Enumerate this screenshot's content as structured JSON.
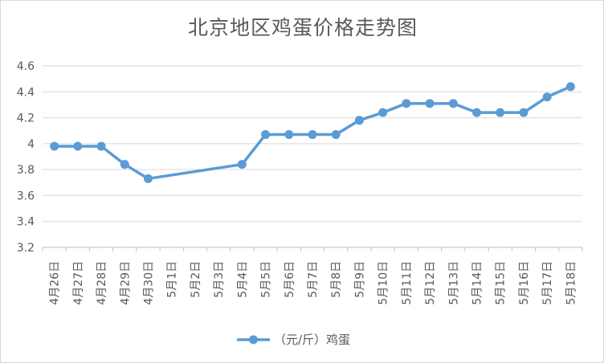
{
  "chart_data": {
    "type": "line",
    "title": "北京地区鸡蛋价格走势图",
    "categories": [
      "4月26日",
      "4月27日",
      "4月28日",
      "4月29日",
      "4月30日",
      "5月1日",
      "5月2日",
      "5月3日",
      "5月4日",
      "5月5日",
      "5月6日",
      "5月7日",
      "5月8日",
      "5月9日",
      "5月10日",
      "5月11日",
      "5月12日",
      "5月13日",
      "5月14日",
      "5月15日",
      "5月16日",
      "5月17日",
      "5月18日"
    ],
    "series": [
      {
        "name": "（元/斤）鸡蛋",
        "color": "#5b9bd5",
        "values": [
          3.98,
          3.98,
          3.98,
          3.84,
          3.73,
          null,
          null,
          null,
          3.84,
          4.07,
          4.07,
          4.07,
          4.07,
          4.18,
          4.24,
          4.31,
          4.31,
          4.31,
          4.24,
          4.24,
          4.24,
          4.36,
          4.44
        ]
      }
    ],
    "ylim": [
      3.2,
      4.6
    ],
    "yticks": [
      "3.2",
      "3.4",
      "3.6",
      "3.8",
      "4",
      "4.2",
      "4.4",
      "4.6"
    ],
    "xlabel": "",
    "ylabel": "",
    "grid": true,
    "legend": "bottom",
    "gap_handling": "connect"
  }
}
